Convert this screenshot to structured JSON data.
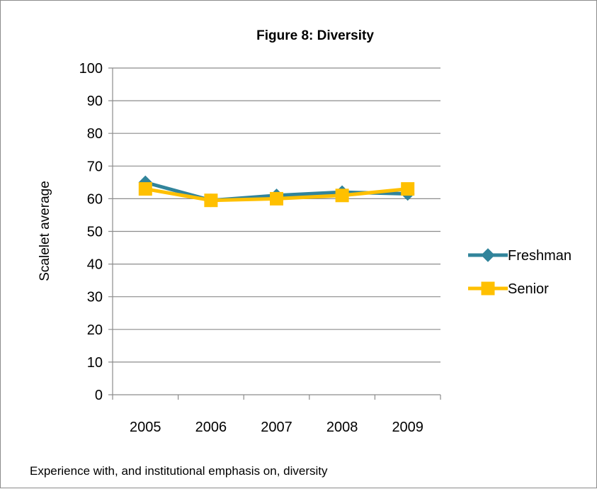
{
  "chart_data": {
    "type": "line",
    "title": "Figure 8: Diversity",
    "ylabel": "Scalelet average",
    "xlabel": "",
    "caption": "Experience with, and institutional emphasis on, diversity",
    "categories": [
      "2005",
      "2006",
      "2007",
      "2008",
      "2009"
    ],
    "ylim": [
      0,
      100
    ],
    "yticks": [
      0,
      10,
      20,
      30,
      40,
      50,
      60,
      70,
      80,
      90,
      100
    ],
    "grid": true,
    "legend_position": "right",
    "series": [
      {
        "name": "Freshman",
        "values": [
          65,
          59.5,
          61,
          62,
          61.5
        ],
        "color": "#31849B",
        "marker": "diamond"
      },
      {
        "name": "Senior",
        "values": [
          63,
          59.5,
          60,
          61,
          63
        ],
        "color": "#FFC000",
        "marker": "square"
      }
    ]
  }
}
